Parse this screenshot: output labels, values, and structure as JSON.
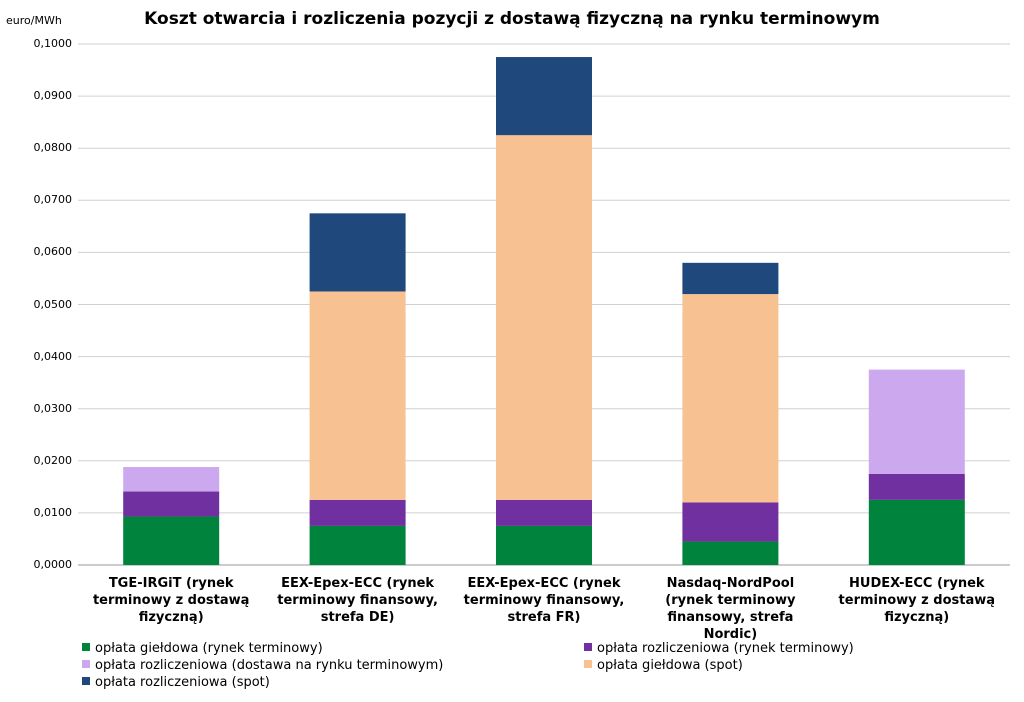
{
  "chart_data": {
    "type": "bar",
    "stacked": true,
    "title": "Koszt otwarcia i rozliczenia pozycji z dostawą fizyczną na rynku terminowym",
    "ylabel": "euro/MWh",
    "xlabel": "",
    "ylim": [
      0,
      0.1
    ],
    "yticks": [
      "0,0000",
      "0,0100",
      "0,0200",
      "0,0300",
      "0,0400",
      "0,0500",
      "0,0600",
      "0,0700",
      "0,0800",
      "0,0900",
      "0,1000"
    ],
    "grid": true,
    "legend_position": "bottom",
    "categories": [
      "TGE-IRGiT (rynek terminowy z dostawą fizyczną)",
      "EEX-Epex-ECC (rynek terminowy finansowy, strefa DE)",
      "EEX-Epex-ECC (rynek terminowy finansowy, strefa FR)",
      "Nasdaq-NordPool (rynek terminowy finansowy, strefa Nordic)",
      "HUDEX-ECC (rynek terminowy z dostawą fizyczną)"
    ],
    "series": [
      {
        "name": "opłata giełdowa (rynek terminowy)",
        "color": "#00843D",
        "values": [
          0.0093,
          0.0075,
          0.0075,
          0.0045,
          0.0125
        ]
      },
      {
        "name": "opłata rozliczeniowa (rynek terminowy)",
        "color": "#7030A0",
        "values": [
          0.0048,
          0.005,
          0.005,
          0.0075,
          0.005
        ]
      },
      {
        "name": "opłata rozliczeniowa (dostawa na rynku terminowym)",
        "color": "#CCA8EE",
        "values": [
          0.0047,
          0,
          0,
          0,
          0.02
        ]
      },
      {
        "name": "opłata giełdowa (spot)",
        "color": "#F8C191",
        "values": [
          0,
          0.04,
          0.07,
          0.04,
          0
        ]
      },
      {
        "name": "opłata rozliczeniowa (spot)",
        "color": "#1F497D",
        "values": [
          0,
          0.015,
          0.015,
          0.006,
          0
        ]
      }
    ]
  }
}
